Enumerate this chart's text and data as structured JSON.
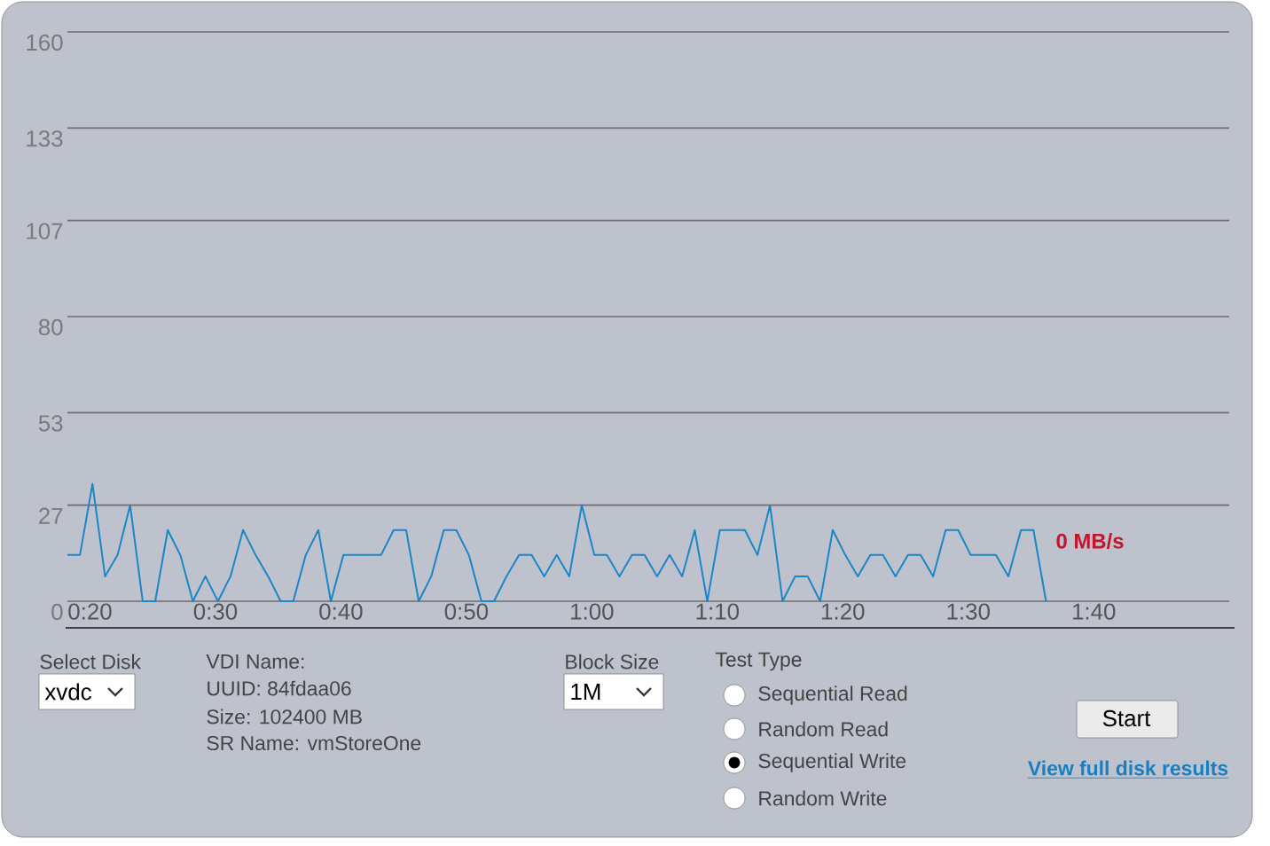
{
  "chart_data": {
    "type": "line",
    "x": [
      18.2,
      19.2,
      20.2,
      21.2,
      22.2,
      23.2,
      24.2,
      25.2,
      26.2,
      27.2,
      28.2,
      29.2,
      30.2,
      31.2,
      32.2,
      33.2,
      34.2,
      35.2,
      36.2,
      37.2,
      38.2,
      39.2,
      40.2,
      41.2,
      42.2,
      43.2,
      44.2,
      45.2,
      46.2,
      47.2,
      48.2,
      49.2,
      50.2,
      51.2,
      52.2,
      53.2,
      54.2,
      55.2,
      56.2,
      57.2,
      58.2,
      59.2,
      60.2,
      61.2,
      62.2,
      63.2,
      64.2,
      65.2,
      66.2,
      67.2,
      68.2,
      69.2,
      70.2,
      71.2,
      72.2,
      73.2,
      74.2,
      75.2,
      76.2,
      77.2,
      78.2,
      79.2,
      80.2,
      81.2,
      82.2,
      83.2,
      84.2,
      85.2,
      86.2,
      87.2,
      88.2,
      89.2,
      90.2,
      91.2,
      92.2,
      93.2,
      94.2,
      95.2,
      96.2
    ],
    "series": [
      {
        "color": "#1a86c8",
        "values": [
          13,
          13,
          33,
          7,
          13,
          27,
          0,
          0,
          20,
          13,
          0,
          7,
          0,
          7,
          20,
          13,
          7,
          0,
          0,
          13,
          20,
          0,
          13,
          13,
          13,
          13,
          20,
          20,
          0,
          7,
          20,
          20,
          13,
          0,
          0,
          7,
          13,
          13,
          7,
          13,
          7,
          27,
          13,
          13,
          7,
          13,
          13,
          7,
          13,
          7,
          20,
          0,
          20,
          20,
          20,
          13,
          27,
          0,
          7,
          7,
          0,
          20,
          13,
          7,
          13,
          13,
          7,
          13,
          13,
          7,
          20,
          20,
          13,
          13,
          13,
          7,
          20,
          20,
          0
        ]
      }
    ],
    "xlim": [
      18.2,
      110.8
    ],
    "xticks": [
      {
        "value": 20,
        "label": "0:20"
      },
      {
        "value": 30,
        "label": "0:30"
      },
      {
        "value": 40,
        "label": "0:40"
      },
      {
        "value": 50,
        "label": "0:50"
      },
      {
        "value": 60,
        "label": "1:00"
      },
      {
        "value": 70,
        "label": "1:10"
      },
      {
        "value": 80,
        "label": "1:20"
      },
      {
        "value": 90,
        "label": "1:30"
      },
      {
        "value": 100,
        "label": "1:40"
      }
    ],
    "ylim": [
      0,
      160
    ],
    "yticks": [
      0,
      27,
      53,
      80,
      107,
      133,
      160
    ],
    "grid": "y",
    "annotations": [
      {
        "text": "0 MB/s",
        "x": 96.2,
        "y": 0
      },
      "Select Disk",
      "xvdc",
      "VDI Name:",
      "UUID: 84fdaa06",
      "Size: 102400 MB",
      "SR Name: vmStoreOne",
      "Block Size",
      "1M",
      "Test Type",
      "Sequential Read",
      "Random Read",
      "Sequential Write",
      "Random Write",
      "Start",
      "View full disk results"
    ]
  }
}
